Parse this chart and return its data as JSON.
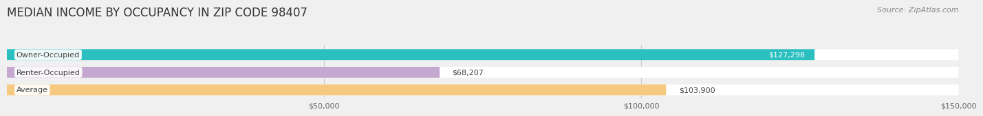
{
  "title": "MEDIAN INCOME BY OCCUPANCY IN ZIP CODE 98407",
  "source": "Source: ZipAtlas.com",
  "categories": [
    "Owner-Occupied",
    "Renter-Occupied",
    "Average"
  ],
  "values": [
    127298,
    68207,
    103900
  ],
  "bar_colors": [
    "#2bbfbf",
    "#c4a8d0",
    "#f5c980"
  ],
  "bar_bg_color": "#e8e8e8",
  "value_labels": [
    "$127,298",
    "$68,207",
    "$103,900"
  ],
  "value_label_colors": [
    "white",
    "#555555",
    "#555555"
  ],
  "value_label_inside": [
    true,
    false,
    false
  ],
  "xlim": [
    0,
    150000
  ],
  "xticks": [
    50000,
    100000,
    150000
  ],
  "xticklabels": [
    "$50,000",
    "$100,000",
    "$150,000"
  ],
  "title_fontsize": 12,
  "bar_height": 0.62,
  "background_color": "#f0f0f0",
  "grid_color": "#cccccc"
}
